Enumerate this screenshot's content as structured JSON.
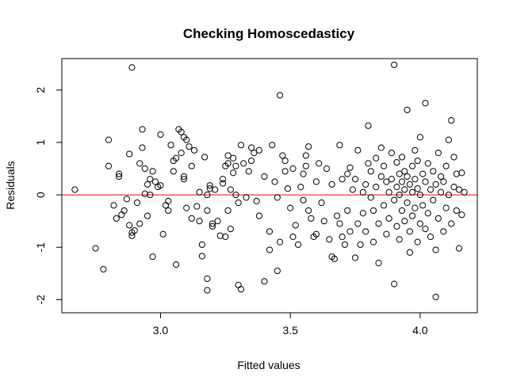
{
  "chart_data": {
    "type": "scatter",
    "title": "Checking Homoscedasticy",
    "xlabel": "Fitted values",
    "ylabel": "Residuals",
    "xlim": [
      2.62,
      4.22
    ],
    "ylim": [
      -2.25,
      2.6
    ],
    "x_ticks": [
      3.0,
      3.5,
      4.0
    ],
    "x_tick_labels": [
      "3.0",
      "3.5",
      "4.0"
    ],
    "y_ticks": [
      -2,
      -1,
      0,
      1,
      2
    ],
    "y_tick_labels": [
      "-2",
      "-1",
      "0",
      "1",
      "2"
    ],
    "reference_line": {
      "y": 0,
      "color": "#ff0000"
    },
    "grid": false,
    "points": [
      [
        2.67,
        0.1
      ],
      [
        2.75,
        -1.02
      ],
      [
        2.78,
        -1.42
      ],
      [
        2.8,
        1.05
      ],
      [
        2.8,
        0.55
      ],
      [
        2.82,
        -0.2
      ],
      [
        2.83,
        -0.45
      ],
      [
        2.84,
        0.4
      ],
      [
        2.84,
        0.35
      ],
      [
        2.85,
        -0.38
      ],
      [
        2.86,
        -0.3
      ],
      [
        2.87,
        -0.08
      ],
      [
        2.88,
        0.78
      ],
      [
        2.88,
        -0.58
      ],
      [
        2.89,
        2.43
      ],
      [
        2.89,
        -0.72
      ],
      [
        2.89,
        -0.78
      ],
      [
        2.9,
        -0.68
      ],
      [
        2.91,
        -0.15
      ],
      [
        2.92,
        0.6
      ],
      [
        2.92,
        -0.55
      ],
      [
        2.93,
        1.25
      ],
      [
        2.93,
        0.9
      ],
      [
        2.94,
        0.5
      ],
      [
        2.94,
        0.02
      ],
      [
        2.95,
        -0.4
      ],
      [
        2.95,
        0.2
      ],
      [
        2.96,
        0.3
      ],
      [
        2.96,
        0.0
      ],
      [
        2.97,
        0.45
      ],
      [
        2.97,
        -1.18
      ],
      [
        2.98,
        0.25
      ],
      [
        2.99,
        0.15
      ],
      [
        3.0,
        0.18
      ],
      [
        3.0,
        1.15
      ],
      [
        3.01,
        -0.75
      ],
      [
        3.02,
        -0.2
      ],
      [
        3.03,
        -0.12
      ],
      [
        3.03,
        -0.3
      ],
      [
        3.04,
        0.95
      ],
      [
        3.05,
        0.65
      ],
      [
        3.05,
        0.45
      ],
      [
        3.06,
        0.7
      ],
      [
        3.06,
        -1.33
      ],
      [
        3.07,
        1.25
      ],
      [
        3.08,
        1.2
      ],
      [
        3.08,
        0.8
      ],
      [
        3.09,
        1.1
      ],
      [
        3.09,
        0.35
      ],
      [
        3.09,
        0.3
      ],
      [
        3.1,
        -0.25
      ],
      [
        3.1,
        1.05
      ],
      [
        3.11,
        0.92
      ],
      [
        3.12,
        0.55
      ],
      [
        3.12,
        -0.45
      ],
      [
        3.13,
        0.85
      ],
      [
        3.14,
        -0.22
      ],
      [
        3.15,
        0.05
      ],
      [
        3.15,
        -0.5
      ],
      [
        3.16,
        -0.95
      ],
      [
        3.16,
        -1.17
      ],
      [
        3.17,
        0.72
      ],
      [
        3.18,
        0.0
      ],
      [
        3.18,
        -0.3
      ],
      [
        3.18,
        -1.6
      ],
      [
        3.18,
        -1.82
      ],
      [
        3.19,
        0.18
      ],
      [
        3.19,
        0.12
      ],
      [
        3.2,
        -0.55
      ],
      [
        3.2,
        -0.6
      ],
      [
        3.21,
        0.1
      ],
      [
        3.22,
        -0.5
      ],
      [
        3.23,
        -0.78
      ],
      [
        3.24,
        0.22
      ],
      [
        3.24,
        0.3
      ],
      [
        3.25,
        0.55
      ],
      [
        3.25,
        -0.8
      ],
      [
        3.26,
        0.75
      ],
      [
        3.26,
        0.6
      ],
      [
        3.26,
        -0.3
      ],
      [
        3.27,
        0.1
      ],
      [
        3.27,
        -0.65
      ],
      [
        3.28,
        0.42
      ],
      [
        3.28,
        0.7
      ],
      [
        3.29,
        0.0
      ],
      [
        3.29,
        0.55
      ],
      [
        3.3,
        -0.15
      ],
      [
        3.3,
        -1.72
      ],
      [
        3.31,
        0.95
      ],
      [
        3.31,
        -1.8
      ],
      [
        3.32,
        0.6
      ],
      [
        3.33,
        -0.05
      ],
      [
        3.34,
        0.45
      ],
      [
        3.35,
        0.9
      ],
      [
        3.35,
        0.65
      ],
      [
        3.36,
        0.8
      ],
      [
        3.37,
        -0.12
      ],
      [
        3.38,
        -0.4
      ],
      [
        3.38,
        0.85
      ],
      [
        3.4,
        -1.65
      ],
      [
        3.4,
        0.35
      ],
      [
        3.42,
        -0.7
      ],
      [
        3.42,
        -1.05
      ],
      [
        3.43,
        0.95
      ],
      [
        3.44,
        0.25
      ],
      [
        3.45,
        -1.45
      ],
      [
        3.45,
        -0.05
      ],
      [
        3.46,
        1.9
      ],
      [
        3.46,
        -0.9
      ],
      [
        3.47,
        0.75
      ],
      [
        3.48,
        0.45
      ],
      [
        3.48,
        0.65
      ],
      [
        3.49,
        0.12
      ],
      [
        3.5,
        -0.25
      ],
      [
        3.51,
        -0.8
      ],
      [
        3.51,
        0.5
      ],
      [
        3.52,
        -0.58
      ],
      [
        3.53,
        -0.95
      ],
      [
        3.54,
        0.15
      ],
      [
        3.55,
        0.4
      ],
      [
        3.55,
        -0.1
      ],
      [
        3.56,
        0.75
      ],
      [
        3.56,
        0.55
      ],
      [
        3.57,
        -0.3
      ],
      [
        3.57,
        0.92
      ],
      [
        3.58,
        -0.45
      ],
      [
        3.59,
        -0.8
      ],
      [
        3.6,
        0.25
      ],
      [
        3.6,
        -0.75
      ],
      [
        3.61,
        0.6
      ],
      [
        3.62,
        -0.15
      ],
      [
        3.63,
        -0.5
      ],
      [
        3.64,
        0.5
      ],
      [
        3.65,
        -0.85
      ],
      [
        3.66,
        -1.18
      ],
      [
        3.66,
        0.2
      ],
      [
        3.67,
        -1.22
      ],
      [
        3.68,
        -0.4
      ],
      [
        3.69,
        -0.55
      ],
      [
        3.69,
        0.95
      ],
      [
        3.7,
        -0.8
      ],
      [
        3.7,
        0.3
      ],
      [
        3.71,
        -0.95
      ],
      [
        3.72,
        0.4
      ],
      [
        3.72,
        -0.3
      ],
      [
        3.73,
        0.52
      ],
      [
        3.73,
        -0.7
      ],
      [
        3.74,
        0.1
      ],
      [
        3.75,
        -1.2
      ],
      [
        3.75,
        0.3
      ],
      [
        3.76,
        -0.55
      ],
      [
        3.76,
        0.85
      ],
      [
        3.77,
        -0.95
      ],
      [
        3.78,
        0.05
      ],
      [
        3.78,
        -0.35
      ],
      [
        3.79,
        0.2
      ],
      [
        3.79,
        -0.7
      ],
      [
        3.8,
        0.6
      ],
      [
        3.8,
        1.32
      ],
      [
        3.81,
        -0.05
      ],
      [
        3.81,
        0.45
      ],
      [
        3.82,
        -0.3
      ],
      [
        3.82,
        -0.9
      ],
      [
        3.83,
        0.7
      ],
      [
        3.83,
        0.15
      ],
      [
        3.84,
        -1.3
      ],
      [
        3.84,
        -0.55
      ],
      [
        3.85,
        0.35
      ],
      [
        3.85,
        0.9
      ],
      [
        3.86,
        -0.2
      ],
      [
        3.86,
        0.55
      ],
      [
        3.87,
        -0.75
      ],
      [
        3.87,
        0.25
      ],
      [
        3.88,
        0.05
      ],
      [
        3.88,
        -0.45
      ],
      [
        3.89,
        0.8
      ],
      [
        3.89,
        0.3
      ],
      [
        3.9,
        2.48
      ],
      [
        3.9,
        -1.7
      ],
      [
        3.9,
        -0.1
      ],
      [
        3.91,
        0.15
      ],
      [
        3.91,
        0.62
      ],
      [
        3.91,
        -0.6
      ],
      [
        3.92,
        0.4
      ],
      [
        3.92,
        0.0
      ],
      [
        3.92,
        -0.85
      ],
      [
        3.93,
        0.25
      ],
      [
        3.93,
        -0.3
      ],
      [
        3.93,
        0.72
      ],
      [
        3.94,
        0.1
      ],
      [
        3.94,
        -0.5
      ],
      [
        3.94,
        0.45
      ],
      [
        3.95,
        1.62
      ],
      [
        3.95,
        -0.15
      ],
      [
        3.95,
        0.35
      ],
      [
        3.96,
        -1.1
      ],
      [
        3.96,
        0.2
      ],
      [
        3.96,
        -0.7
      ],
      [
        3.97,
        0.55
      ],
      [
        3.97,
        0.05
      ],
      [
        3.97,
        -0.4
      ],
      [
        3.98,
        0.85
      ],
      [
        3.98,
        -0.25
      ],
      [
        3.98,
        0.3
      ],
      [
        3.99,
        -0.9
      ],
      [
        3.99,
        0.12
      ],
      [
        3.99,
        0.65
      ],
      [
        4.0,
        -0.55
      ],
      [
        4.0,
        0.0
      ],
      [
        4.0,
        1.1
      ],
      [
        4.01,
        0.4
      ],
      [
        4.01,
        -0.2
      ],
      [
        4.02,
        1.75
      ],
      [
        4.02,
        -0.65
      ],
      [
        4.02,
        0.25
      ],
      [
        4.03,
        0.6
      ],
      [
        4.03,
        -0.35
      ],
      [
        4.04,
        0.1
      ],
      [
        4.04,
        -0.8
      ],
      [
        4.05,
        0.45
      ],
      [
        4.05,
        -0.1
      ],
      [
        4.06,
        -1.05
      ],
      [
        4.06,
        0.2
      ],
      [
        4.06,
        -1.95
      ],
      [
        4.07,
        0.8
      ],
      [
        4.07,
        -0.45
      ],
      [
        4.08,
        0.05
      ],
      [
        4.08,
        0.35
      ],
      [
        4.09,
        -0.7
      ],
      [
        4.09,
        0.25
      ],
      [
        4.1,
        0.55
      ],
      [
        4.1,
        -0.25
      ],
      [
        4.11,
        1.05
      ],
      [
        4.11,
        0.0
      ],
      [
        4.12,
        1.42
      ],
      [
        4.12,
        -0.55
      ],
      [
        4.13,
        0.15
      ],
      [
        4.13,
        0.72
      ],
      [
        4.14,
        -0.3
      ],
      [
        4.14,
        0.4
      ],
      [
        4.15,
        -1.02
      ],
      [
        4.15,
        0.1
      ],
      [
        4.16,
        0.42
      ],
      [
        4.16,
        -0.38
      ],
      [
        4.17,
        0.05
      ]
    ]
  }
}
